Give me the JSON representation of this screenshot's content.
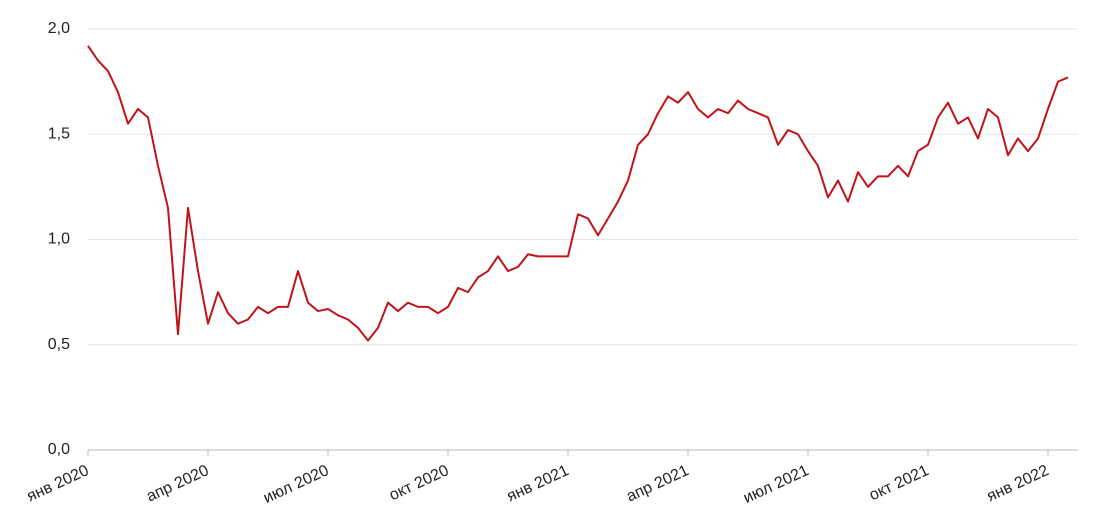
{
  "chart_data": {
    "type": "line",
    "categories": [
      "янв 2020",
      null,
      null,
      null,
      null,
      null,
      null,
      null,
      null,
      null,
      null,
      null,
      "апр 2020",
      null,
      null,
      null,
      null,
      null,
      null,
      null,
      null,
      null,
      null,
      null,
      "июл 2020",
      null,
      null,
      null,
      null,
      null,
      null,
      null,
      null,
      null,
      null,
      null,
      "окт 2020",
      null,
      null,
      null,
      null,
      null,
      null,
      null,
      null,
      null,
      null,
      null,
      "янв 2021",
      null,
      null,
      null,
      null,
      null,
      null,
      null,
      null,
      null,
      null,
      null,
      "апр 2021",
      null,
      null,
      null,
      null,
      null,
      null,
      null,
      null,
      null,
      null,
      null,
      "июл 2021",
      null,
      null,
      null,
      null,
      null,
      null,
      null,
      null,
      null,
      null,
      null,
      "окт 2021",
      null,
      null,
      null,
      null,
      null,
      null,
      null,
      null,
      null,
      null,
      null,
      "янв 2022",
      null,
      null
    ],
    "series": [
      {
        "color": "#c0141b",
        "values": [
          1.92,
          1.85,
          1.8,
          1.7,
          1.55,
          1.62,
          1.58,
          1.35,
          1.15,
          0.55,
          1.15,
          0.85,
          0.6,
          0.75,
          0.65,
          0.6,
          0.62,
          0.68,
          0.65,
          0.68,
          0.68,
          0.85,
          0.7,
          0.66,
          0.67,
          0.64,
          0.62,
          0.58,
          0.52,
          0.58,
          0.7,
          0.66,
          0.7,
          0.68,
          0.68,
          0.65,
          0.68,
          0.77,
          0.75,
          0.82,
          0.85,
          0.92,
          0.85,
          0.87,
          0.93,
          0.92,
          0.92,
          0.92,
          0.92,
          1.12,
          1.1,
          1.02,
          1.1,
          1.18,
          1.28,
          1.45,
          1.5,
          1.6,
          1.68,
          1.65,
          1.7,
          1.62,
          1.58,
          1.62,
          1.6,
          1.66,
          1.62,
          1.6,
          1.58,
          1.45,
          1.52,
          1.5,
          1.42,
          1.35,
          1.2,
          1.28,
          1.18,
          1.32,
          1.25,
          1.3,
          1.3,
          1.35,
          1.3,
          1.42,
          1.45,
          1.58,
          1.65,
          1.55,
          1.58,
          1.48,
          1.62,
          1.58,
          1.4,
          1.48,
          1.42,
          1.48,
          1.62,
          1.75,
          1.77
        ]
      }
    ],
    "ylim": [
      0,
      2
    ],
    "yticks": [
      {
        "value": 0,
        "label": "0,0"
      },
      {
        "value": 0.5,
        "label": "0,5"
      },
      {
        "value": 1,
        "label": "1,0"
      },
      {
        "value": 1.5,
        "label": "1,5"
      },
      {
        "value": 2,
        "label": "2,0"
      }
    ],
    "grid": true
  }
}
